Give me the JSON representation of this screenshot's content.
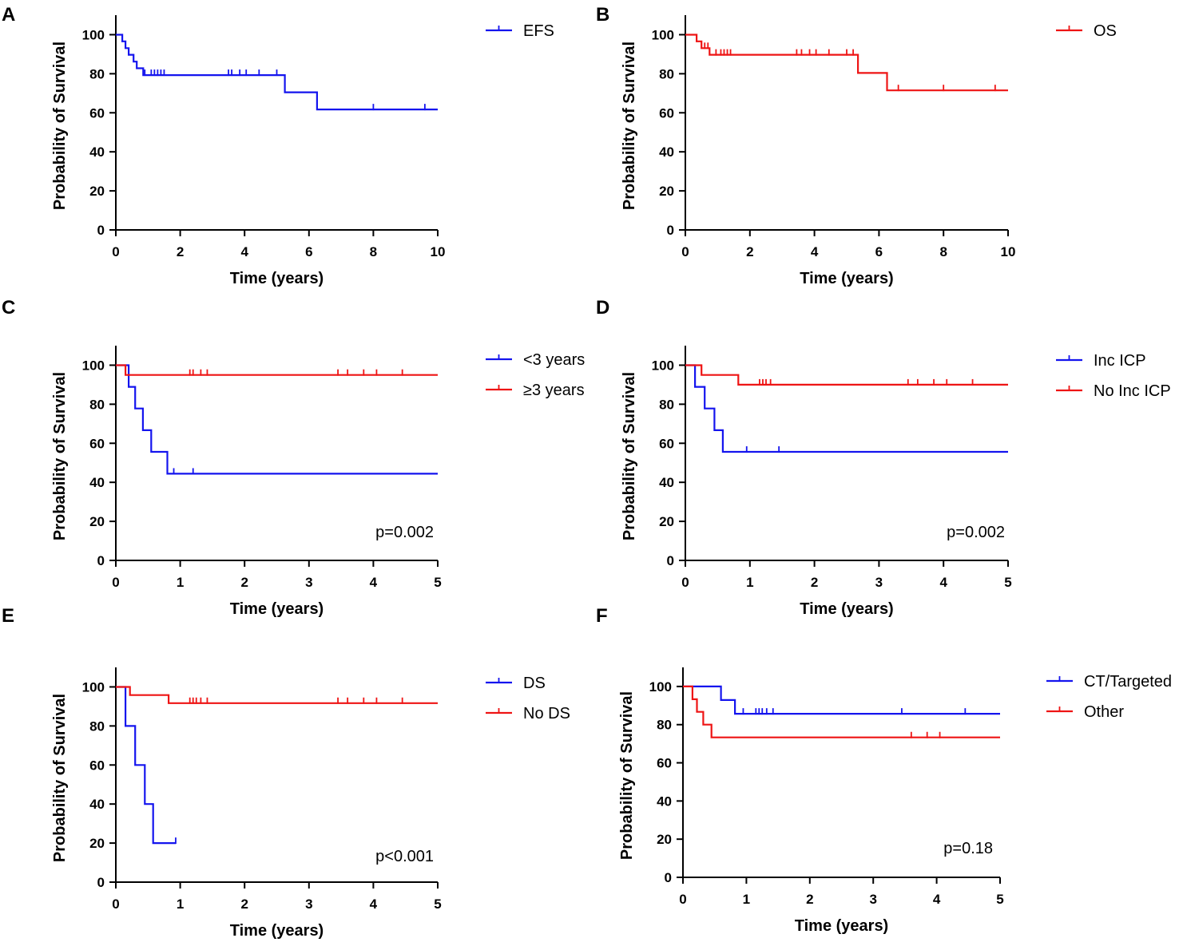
{
  "chart_data": [
    {
      "panel": "A",
      "type": "line",
      "step": true,
      "xlabel": "Time (years)",
      "ylabel": "Probability of Survival",
      "xlim": [
        0,
        10
      ],
      "ylim": [
        0,
        110
      ],
      "xticks": [
        "0",
        "2",
        "4",
        "6",
        "8",
        "10"
      ],
      "yticks": [
        "0",
        "20",
        "40",
        "60",
        "80",
        "100"
      ],
      "pvalue": "",
      "series": [
        {
          "name": "EFS",
          "color": "#1414ee",
          "steps": [
            [
              0,
              100
            ],
            [
              0.1,
              100
            ],
            [
              0.2,
              96.6
            ],
            [
              0.3,
              93.1
            ],
            [
              0.4,
              89.7
            ],
            [
              0.55,
              86.2
            ],
            [
              0.65,
              82.8
            ],
            [
              0.85,
              79.3
            ],
            [
              5.25,
              79.3
            ],
            [
              5.25,
              70.5
            ],
            [
              6.25,
              70.5
            ],
            [
              6.25,
              61.7
            ],
            [
              10,
              61.7
            ]
          ],
          "censors": [
            [
              0.9,
              79.3
            ],
            [
              1.1,
              79.3
            ],
            [
              1.2,
              79.3
            ],
            [
              1.3,
              79.3
            ],
            [
              1.4,
              79.3
            ],
            [
              1.5,
              79.3
            ],
            [
              3.5,
              79.3
            ],
            [
              3.6,
              79.3
            ],
            [
              3.85,
              79.3
            ],
            [
              4.05,
              79.3
            ],
            [
              4.45,
              79.3
            ],
            [
              5.0,
              79.3
            ],
            [
              8.0,
              61.7
            ],
            [
              9.6,
              61.7
            ]
          ]
        }
      ]
    },
    {
      "panel": "B",
      "type": "line",
      "step": true,
      "xlabel": "Time (years)",
      "ylabel": "Probability of Survival",
      "xlim": [
        0,
        10
      ],
      "ylim": [
        0,
        110
      ],
      "xticks": [
        "0",
        "2",
        "4",
        "6",
        "8",
        "10"
      ],
      "yticks": [
        "0",
        "20",
        "40",
        "60",
        "80",
        "100"
      ],
      "pvalue": "",
      "series": [
        {
          "name": "OS",
          "color": "#ee1414",
          "steps": [
            [
              0,
              100
            ],
            [
              0.35,
              100
            ],
            [
              0.35,
              96.6
            ],
            [
              0.5,
              93.1
            ],
            [
              0.75,
              89.7
            ],
            [
              5.35,
              89.7
            ],
            [
              5.35,
              80.4
            ],
            [
              6.25,
              80.4
            ],
            [
              6.25,
              71.5
            ],
            [
              10,
              71.5
            ]
          ],
          "censors": [
            [
              0.6,
              93.1
            ],
            [
              0.7,
              93.1
            ],
            [
              0.95,
              89.7
            ],
            [
              1.1,
              89.7
            ],
            [
              1.2,
              89.7
            ],
            [
              1.3,
              89.7
            ],
            [
              1.4,
              89.7
            ],
            [
              3.45,
              89.7
            ],
            [
              3.6,
              89.7
            ],
            [
              3.85,
              89.7
            ],
            [
              4.05,
              89.7
            ],
            [
              4.45,
              89.7
            ],
            [
              5.0,
              89.7
            ],
            [
              5.2,
              89.7
            ],
            [
              6.6,
              71.5
            ],
            [
              8.0,
              71.5
            ],
            [
              9.6,
              71.5
            ]
          ]
        }
      ]
    },
    {
      "panel": "C",
      "type": "line",
      "step": true,
      "xlabel": "Time (years)",
      "ylabel": "Probability of Survival",
      "xlim": [
        0,
        5
      ],
      "ylim": [
        0,
        110
      ],
      "xticks": [
        "0",
        "1",
        "2",
        "3",
        "4",
        "5"
      ],
      "yticks": [
        "0",
        "20",
        "40",
        "60",
        "80",
        "100"
      ],
      "pvalue": "p=0.002",
      "series": [
        {
          "name": "<3 years",
          "color": "#1414ee",
          "steps": [
            [
              0,
              100
            ],
            [
              0.2,
              100
            ],
            [
              0.2,
              88.9
            ],
            [
              0.3,
              88.9
            ],
            [
              0.3,
              77.8
            ],
            [
              0.42,
              77.8
            ],
            [
              0.42,
              66.7
            ],
            [
              0.55,
              66.7
            ],
            [
              0.55,
              55.6
            ],
            [
              0.8,
              55.6
            ],
            [
              0.8,
              44.4
            ],
            [
              5,
              44.4
            ]
          ],
          "censors": [
            [
              0.9,
              44.4
            ],
            [
              1.2,
              44.4
            ]
          ]
        },
        {
          "name": "≥3 years",
          "color": "#ee1414",
          "steps": [
            [
              0,
              100
            ],
            [
              0.15,
              100
            ],
            [
              0.15,
              95
            ],
            [
              5,
              95
            ]
          ],
          "censors": [
            [
              1.15,
              95
            ],
            [
              1.2,
              95
            ],
            [
              1.32,
              95
            ],
            [
              1.42,
              95
            ],
            [
              3.45,
              95
            ],
            [
              3.6,
              95
            ],
            [
              3.85,
              95
            ],
            [
              4.05,
              95
            ],
            [
              4.45,
              95
            ]
          ]
        }
      ]
    },
    {
      "panel": "D",
      "type": "line",
      "step": true,
      "xlabel": "Time (years)",
      "ylabel": "Probability of Survival",
      "xlim": [
        0,
        5
      ],
      "ylim": [
        0,
        110
      ],
      "xticks": [
        "0",
        "1",
        "2",
        "3",
        "4",
        "5"
      ],
      "yticks": [
        "0",
        "20",
        "40",
        "60",
        "80",
        "100"
      ],
      "pvalue": "p=0.002",
      "series": [
        {
          "name": "Inc ICP",
          "color": "#1414ee",
          "steps": [
            [
              0,
              100
            ],
            [
              0.15,
              100
            ],
            [
              0.15,
              88.9
            ],
            [
              0.3,
              88.9
            ],
            [
              0.3,
              77.8
            ],
            [
              0.45,
              77.8
            ],
            [
              0.45,
              66.7
            ],
            [
              0.58,
              66.7
            ],
            [
              0.58,
              55.6
            ],
            [
              5,
              55.6
            ]
          ],
          "censors": [
            [
              0.95,
              55.6
            ],
            [
              1.45,
              55.6
            ]
          ]
        },
        {
          "name": "No Inc ICP",
          "color": "#ee1414",
          "steps": [
            [
              0,
              100
            ],
            [
              0.25,
              100
            ],
            [
              0.25,
              95
            ],
            [
              0.82,
              95
            ],
            [
              0.82,
              90
            ],
            [
              5,
              90
            ]
          ],
          "censors": [
            [
              1.15,
              90
            ],
            [
              1.2,
              90
            ],
            [
              1.25,
              90
            ],
            [
              1.32,
              90
            ],
            [
              3.45,
              90
            ],
            [
              3.6,
              90
            ],
            [
              3.85,
              90
            ],
            [
              4.05,
              90
            ],
            [
              4.45,
              90
            ]
          ]
        }
      ]
    },
    {
      "panel": "E",
      "type": "line",
      "step": true,
      "xlabel": "Time (years)",
      "ylabel": "Probability of Survival",
      "xlim": [
        0,
        5
      ],
      "ylim": [
        0,
        110
      ],
      "xticks": [
        "0",
        "1",
        "2",
        "3",
        "4",
        "5"
      ],
      "yticks": [
        "0",
        "20",
        "40",
        "60",
        "80",
        "100"
      ],
      "pvalue": "p<0.001",
      "series": [
        {
          "name": "DS",
          "color": "#1414ee",
          "steps": [
            [
              0,
              100
            ],
            [
              0.15,
              100
            ],
            [
              0.15,
              80
            ],
            [
              0.3,
              80
            ],
            [
              0.3,
              60
            ],
            [
              0.45,
              60
            ],
            [
              0.45,
              40
            ],
            [
              0.58,
              40
            ],
            [
              0.58,
              20
            ],
            [
              0.93,
              20
            ]
          ],
          "censors": [
            [
              0.93,
              20
            ]
          ]
        },
        {
          "name": "No DS",
          "color": "#ee1414",
          "steps": [
            [
              0,
              100
            ],
            [
              0.22,
              100
            ],
            [
              0.22,
              95.8
            ],
            [
              0.82,
              95.8
            ],
            [
              0.82,
              91.7
            ],
            [
              5,
              91.7
            ]
          ],
          "censors": [
            [
              1.15,
              91.7
            ],
            [
              1.2,
              91.7
            ],
            [
              1.25,
              91.7
            ],
            [
              1.32,
              91.7
            ],
            [
              1.42,
              91.7
            ],
            [
              3.45,
              91.7
            ],
            [
              3.6,
              91.7
            ],
            [
              3.85,
              91.7
            ],
            [
              4.05,
              91.7
            ],
            [
              4.45,
              91.7
            ]
          ]
        }
      ]
    },
    {
      "panel": "F",
      "type": "line",
      "step": true,
      "xlabel": "Time (years)",
      "ylabel": "Probability of Survival",
      "xlim": [
        0,
        5
      ],
      "ylim": [
        0,
        110
      ],
      "xticks": [
        "0",
        "1",
        "2",
        "3",
        "4",
        "5"
      ],
      "yticks": [
        "0",
        "20",
        "40",
        "60",
        "80",
        "100"
      ],
      "pvalue": "p=0.18",
      "series": [
        {
          "name": "CT/Targeted",
          "color": "#1414ee",
          "steps": [
            [
              0,
              100
            ],
            [
              0.6,
              100
            ],
            [
              0.6,
              92.9
            ],
            [
              0.82,
              92.9
            ],
            [
              0.82,
              85.7
            ],
            [
              5,
              85.7
            ]
          ],
          "censors": [
            [
              0.95,
              85.7
            ],
            [
              1.15,
              85.7
            ],
            [
              1.2,
              85.7
            ],
            [
              1.25,
              85.7
            ],
            [
              1.32,
              85.7
            ],
            [
              1.42,
              85.7
            ],
            [
              3.45,
              85.7
            ],
            [
              4.45,
              85.7
            ]
          ]
        },
        {
          "name": "Other",
          "color": "#ee1414",
          "steps": [
            [
              0,
              100
            ],
            [
              0.15,
              100
            ],
            [
              0.15,
              93.3
            ],
            [
              0.22,
              93.3
            ],
            [
              0.22,
              86.7
            ],
            [
              0.32,
              86.7
            ],
            [
              0.32,
              80
            ],
            [
              0.45,
              80
            ],
            [
              0.45,
              73.3
            ],
            [
              5,
              73.3
            ]
          ],
          "censors": [
            [
              3.6,
              73.3
            ],
            [
              3.85,
              73.3
            ],
            [
              4.05,
              73.3
            ]
          ]
        }
      ]
    }
  ]
}
